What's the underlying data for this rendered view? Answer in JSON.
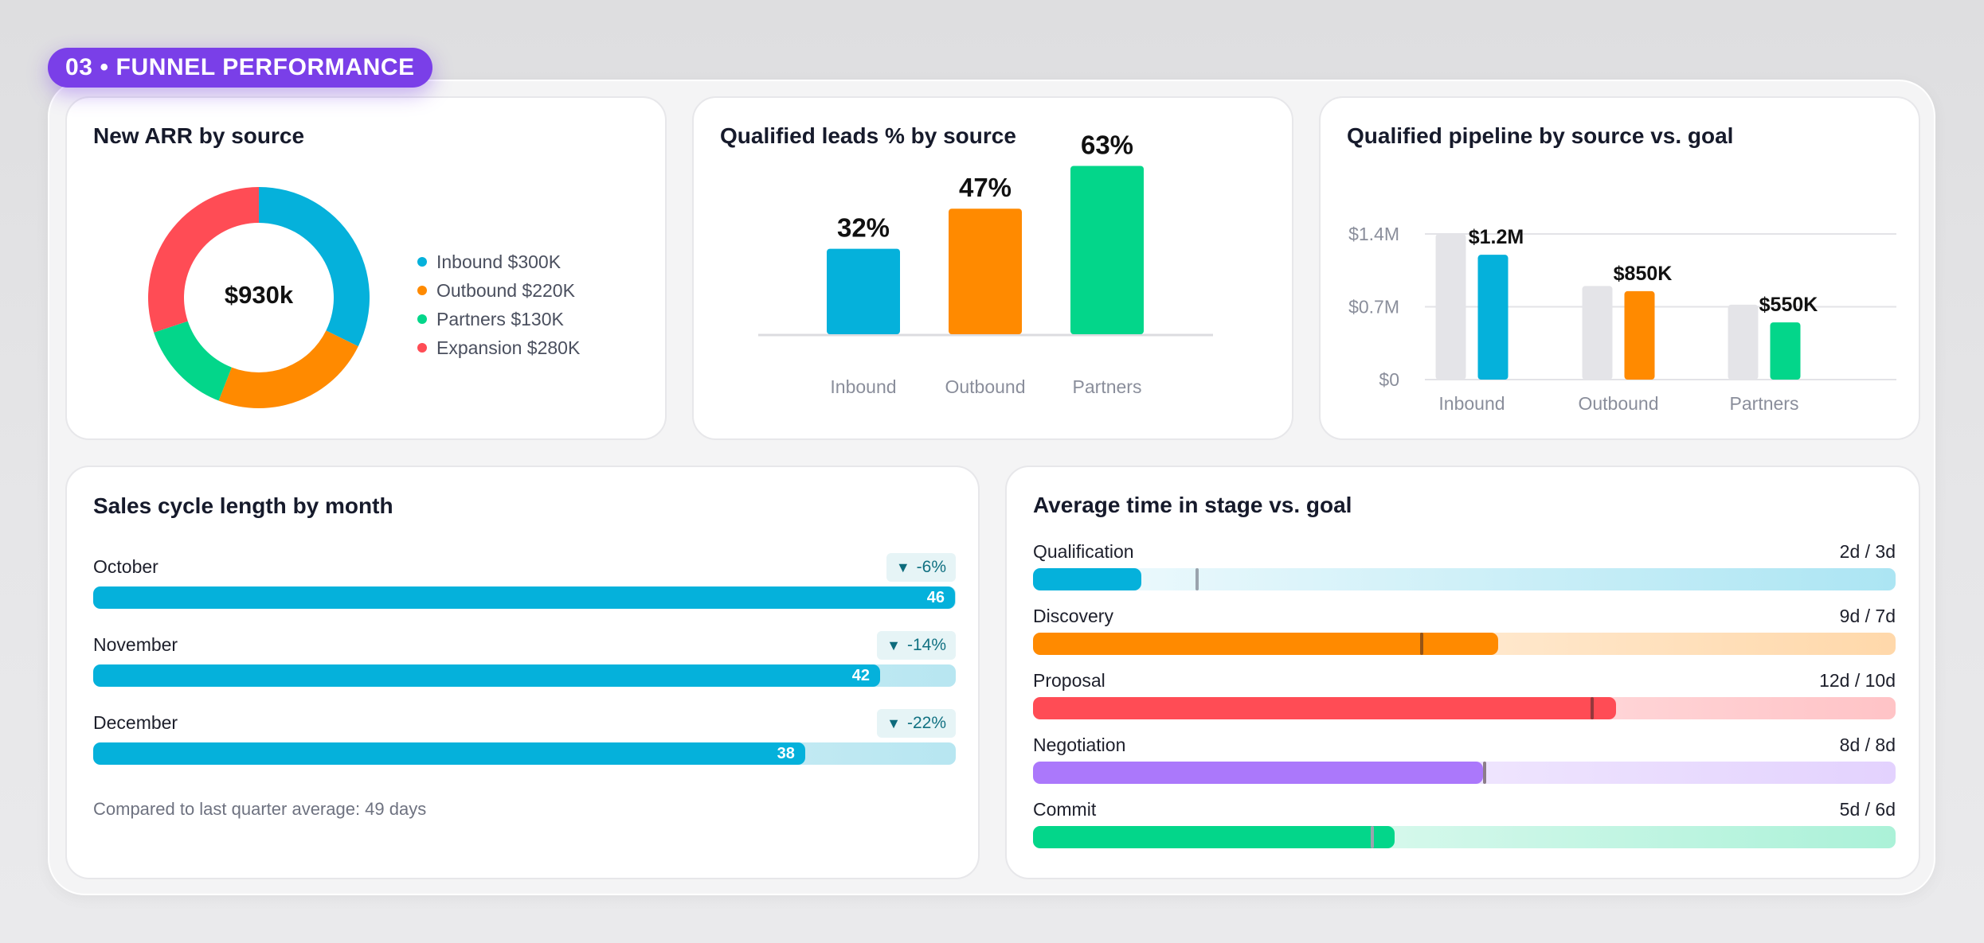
{
  "section": {
    "badge": "03 • FUNNEL PERFORMANCE"
  },
  "colors": {
    "inbound": "#05b1db",
    "outbound": "#ff8a00",
    "partners": "#03d68a",
    "expansion": "#ff4c55",
    "negotiation": "#ab78fb",
    "accent": "#7a3fe8"
  },
  "new_arr": {
    "title": "New ARR by source",
    "center_label": "$930k",
    "legend": [
      {
        "label": "Inbound $300K",
        "color": "#05b1db"
      },
      {
        "label": "Outbound $220K",
        "color": "#ff8a00"
      },
      {
        "label": "Partners $130K",
        "color": "#03d68a"
      },
      {
        "label": "Expansion $280K",
        "color": "#ff4c55"
      }
    ]
  },
  "qualified_leads": {
    "title": "Qualified leads % by source",
    "categories": [
      "Inbound",
      "Outbound",
      "Partners"
    ],
    "value_labels": [
      "32%",
      "47%",
      "63%"
    ]
  },
  "pipeline": {
    "title": "Qualified pipeline by source vs. goal",
    "y_ticks": [
      "$1.4M",
      "$0.7M",
      "$0"
    ],
    "categories": [
      "Inbound",
      "Outbound",
      "Partners"
    ],
    "value_labels": [
      "$1.2M",
      "$850K",
      "$550K"
    ]
  },
  "sales_cycle": {
    "title": "Sales cycle length by month",
    "rows": [
      {
        "month": "October",
        "days": "46",
        "delta": "-6%"
      },
      {
        "month": "November",
        "days": "42",
        "delta": "-14%"
      },
      {
        "month": "December",
        "days": "38",
        "delta": "-22%"
      }
    ],
    "footnote": "Compared to last quarter average: 49 days"
  },
  "stage_time": {
    "title": "Average time in stage vs. goal",
    "stages": [
      {
        "name": "Qualification",
        "value": "2d / 3d",
        "actual": 2,
        "goal": 3,
        "color": "#05b1db"
      },
      {
        "name": "Discovery",
        "value": "9d / 7d",
        "actual": 9,
        "goal": 7,
        "color": "#ff8a00"
      },
      {
        "name": "Proposal",
        "value": "12d / 10d",
        "actual": 12,
        "goal": 10,
        "color": "#ff4c55"
      },
      {
        "name": "Negotiation",
        "value": "8d / 8d",
        "actual": 8,
        "goal": 8,
        "color": "#ab78fb"
      },
      {
        "name": "Commit",
        "value": "5d / 6d",
        "actual": 5,
        "goal": 6,
        "color": "#03d68a"
      }
    ]
  },
  "chart_data": [
    {
      "type": "pie",
      "title": "New ARR by source",
      "categories": [
        "Inbound",
        "Outbound",
        "Partners",
        "Expansion"
      ],
      "values": [
        300,
        220,
        130,
        280
      ],
      "unit": "$K",
      "total_label": "$930k",
      "legend": "right"
    },
    {
      "type": "bar",
      "title": "Qualified leads % by source",
      "categories": [
        "Inbound",
        "Outbound",
        "Partners"
      ],
      "values": [
        32,
        47,
        63
      ],
      "unit": "%",
      "ylim": [
        0,
        70
      ],
      "grid": false
    },
    {
      "type": "bar",
      "title": "Qualified pipeline by source vs. goal",
      "categories": [
        "Inbound",
        "Outbound",
        "Partners"
      ],
      "series": [
        {
          "values": [
            1.4,
            0.9,
            0.72
          ],
          "color": "#e4e4e8"
        },
        {
          "values": [
            1.2,
            0.85,
            0.55
          ]
        }
      ],
      "unit": "$M",
      "ylim": [
        0,
        1.4
      ],
      "yticks": [
        0,
        0.7,
        1.4
      ],
      "grid": true
    },
    {
      "type": "bar",
      "orientation": "horizontal",
      "title": "Sales cycle length by month",
      "categories": [
        "October",
        "November",
        "December"
      ],
      "values": [
        46,
        42,
        38
      ],
      "unit": "days",
      "xlim": [
        0,
        50
      ]
    },
    {
      "type": "bar",
      "orientation": "horizontal",
      "title": "Average time in stage vs. goal",
      "categories": [
        "Qualification",
        "Discovery",
        "Proposal",
        "Negotiation",
        "Commit"
      ],
      "series": [
        {
          "values": [
            2,
            9,
            12,
            8,
            5
          ]
        },
        {
          "values": [
            3,
            7,
            10,
            8,
            6
          ]
        }
      ],
      "unit": "days",
      "xlim": [
        0,
        15
      ]
    }
  ]
}
